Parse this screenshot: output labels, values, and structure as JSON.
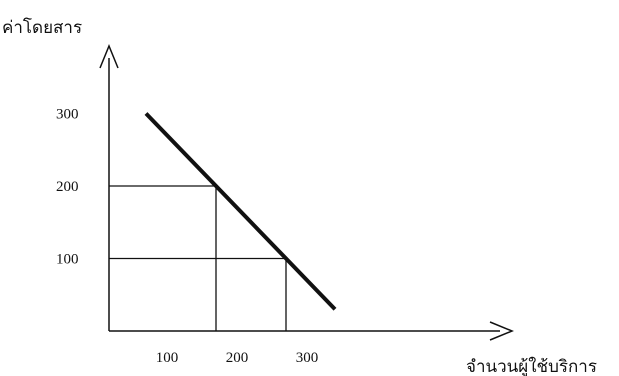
{
  "chart_data": {
    "type": "line",
    "title": "",
    "xlabel": "จำนวนผู้ใช้บริการ",
    "ylabel": "ค่าโดยสาร",
    "xlim": [
      0,
      350
    ],
    "ylim": [
      0,
      350
    ],
    "x_ticks": [
      100,
      200,
      300
    ],
    "y_ticks": [
      100,
      200,
      300
    ],
    "grid": false,
    "series": [
      {
        "x": [
          70,
          340
        ],
        "y": [
          300,
          30
        ]
      }
    ],
    "reference_lines": [
      {
        "point": [
          170,
          200
        ]
      },
      {
        "point": [
          270,
          100
        ]
      }
    ],
    "colors": {
      "line": "#111111",
      "axis": "#111111",
      "reference": "#111111"
    }
  }
}
